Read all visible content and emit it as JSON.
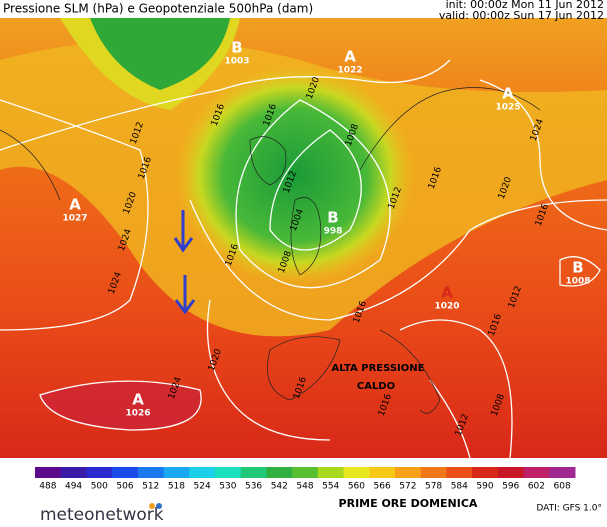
{
  "header": {
    "title": "Pressione SLM (hPa) e Geopotenziale 500hPa (dam)",
    "init": "init: 00:00z Mon 11 Jun 2012",
    "valid": "valid: 00:00z Sun 17 Jun 2012"
  },
  "centres": [
    {
      "letter": "A",
      "value": "1022"
    },
    {
      "letter": "B",
      "value": "1003"
    },
    {
      "letter": "A",
      "value": "1025"
    },
    {
      "letter": "A",
      "value": "1027"
    },
    {
      "letter": "B",
      "value": "998"
    },
    {
      "letter": "B",
      "value": "1008"
    },
    {
      "letter": "A",
      "value": "1020"
    },
    {
      "letter": "A",
      "value": "1026"
    }
  ],
  "isobar_labels": [
    "1020",
    "1016",
    "1012",
    "1016",
    "1008",
    "1012",
    "1020",
    "1024",
    "1016",
    "1004",
    "1008",
    "1024",
    "1016",
    "1012",
    "1016",
    "1020",
    "1024",
    "1016",
    "1012",
    "1016",
    "1020",
    "1024",
    "1016",
    "1016",
    "1012",
    "1008",
    "1016"
  ],
  "annotations": [
    "ALTA PRESSIONE",
    "CALDO"
  ],
  "colorbar": {
    "ticks": [
      "488",
      "494",
      "500",
      "506",
      "512",
      "518",
      "524",
      "530",
      "536",
      "542",
      "548",
      "554",
      "560",
      "566",
      "572",
      "578",
      "584",
      "590",
      "596",
      "602",
      "608"
    ],
    "colors": [
      "#5a0a8a",
      "#3a1aa8",
      "#2a2ad0",
      "#1a4ae8",
      "#1a78f0",
      "#1aa8f0",
      "#1ad0e8",
      "#1ae0c0",
      "#20c878",
      "#30b040",
      "#58c030",
      "#a8d820",
      "#e8e820",
      "#f8c818",
      "#f8a018",
      "#f07818",
      "#e85018",
      "#d82818",
      "#c81828",
      "#c02068",
      "#a02890"
    ]
  },
  "footer": {
    "logo": "meteonetwork",
    "caption": "PRIME ORE DOMENICA",
    "source": "DATI: GFS 1.0°"
  }
}
